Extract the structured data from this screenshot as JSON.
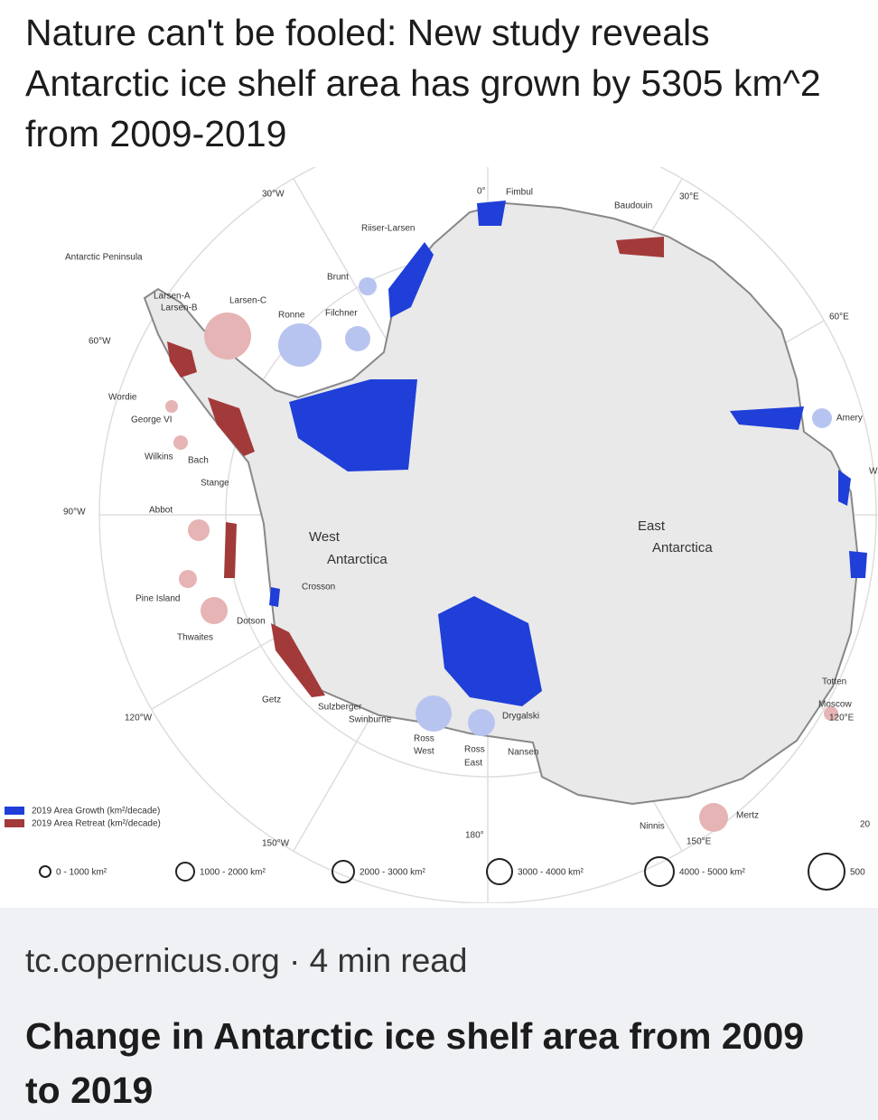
{
  "post": {
    "text": "Nature can't be fooled: New study reveals Antarctic ice shelf area has grown by 5305 km^2 from 2009-2019"
  },
  "map": {
    "labels": [
      "30°W",
      "0°",
      "Fimbul",
      "Baudouin",
      "30°E",
      "Riiser-Larsen",
      "Antarctic Peninsula",
      "Brunt",
      "Larsen-A",
      "Larsen-B",
      "Larsen-C",
      "Ronne",
      "Filchner",
      "60°E",
      "60°W",
      "Wordie",
      "George VI",
      "Amery",
      "Wilkins",
      "Bach",
      "Stange",
      "90°W",
      "Abbot",
      "West",
      "Antarctica",
      "East",
      "Antarctica",
      "Crosson",
      "Pine Island",
      "Dotson",
      "Thwaites",
      "Getz",
      "120°W",
      "Sulzberger",
      "Swinburne",
      "Drygalski",
      "Totten",
      "Moscow",
      "120°E",
      "Ross",
      "West",
      "Ross",
      "East",
      "Nansen",
      "Mertz",
      "Ninnis",
      "180°",
      "150°E",
      "150°W",
      "20",
      "W"
    ],
    "legend": {
      "growth": "2019 Area Growth (km²/decade)",
      "retreat": "2019 Area Retreat (km²/decade)",
      "sizes": [
        "0 - 1000 km²",
        "1000 - 2000 km²",
        "2000 - 3000 km²",
        "3000 - 4000 km²",
        "4000 - 5000 km²",
        "500"
      ]
    }
  },
  "link_preview": {
    "source": "tc.copernicus.org",
    "separator": "·",
    "read_time": "4 min read",
    "title": "Change in Antarctic ice shelf area from 2009 to 2019"
  }
}
